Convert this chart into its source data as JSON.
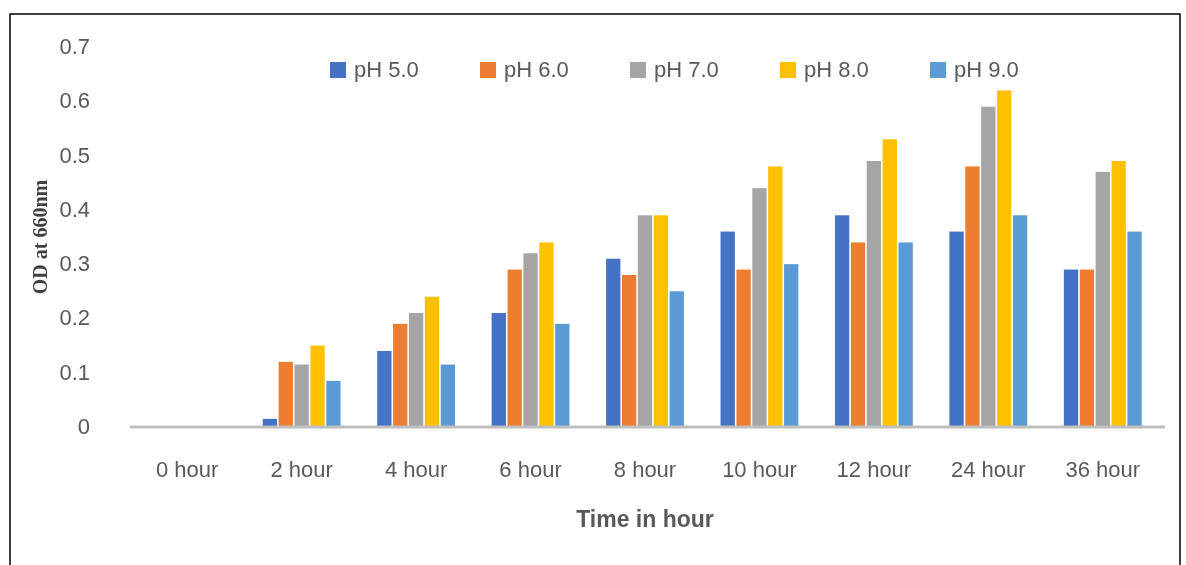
{
  "chart_data": {
    "type": "bar",
    "xlabel": "Time in hour",
    "ylabel": "OD at 660nm",
    "categories": [
      "0 hour",
      "2 hour",
      "4 hour",
      "6 hour",
      "8 hour",
      "10 hour",
      "12 hour",
      "24 hour",
      "36 hour"
    ],
    "series": [
      {
        "name": "pH 5.0",
        "color": "#4472c4",
        "values": [
          0,
          0.015,
          0.14,
          0.21,
          0.31,
          0.36,
          0.39,
          0.36,
          0.29
        ]
      },
      {
        "name": "pH 6.0",
        "color": "#ed7d31",
        "values": [
          0,
          0.12,
          0.19,
          0.29,
          0.28,
          0.29,
          0.34,
          0.48,
          0.29
        ]
      },
      {
        "name": "pH 7.0",
        "color": "#a5a5a5",
        "values": [
          0,
          0.115,
          0.21,
          0.32,
          0.39,
          0.44,
          0.49,
          0.59,
          0.47
        ]
      },
      {
        "name": "pH 8.0",
        "color": "#ffc000",
        "values": [
          0,
          0.15,
          0.24,
          0.34,
          0.39,
          0.48,
          0.53,
          0.62,
          0.49
        ]
      },
      {
        "name": "pH 9.0",
        "color": "#5b9bd5",
        "values": [
          0,
          0.085,
          0.115,
          0.19,
          0.25,
          0.3,
          0.34,
          0.39,
          0.36
        ]
      }
    ],
    "ylim": [
      0,
      0.7
    ],
    "yticks": [
      0,
      0.1,
      0.2,
      0.3,
      0.4,
      0.5,
      0.6,
      0.7
    ],
    "grid": false,
    "legend": "top"
  }
}
